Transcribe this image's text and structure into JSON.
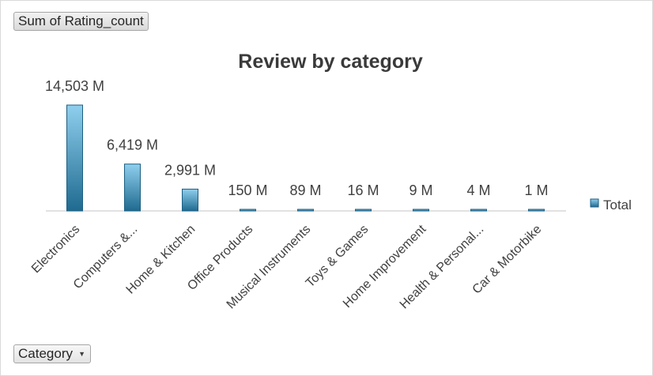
{
  "value_field_button": "Sum of Rating_count",
  "axis_field_button": "Category",
  "colors": {
    "bar_top": "#8fcfee",
    "bar_bottom": "#1f6a90",
    "bar_stroke": "#1c5f82",
    "axis": "#d9d9d9",
    "text": "#404040",
    "title": "#3a3a3a"
  },
  "chart_data": {
    "type": "bar",
    "title": "Review by category",
    "xlabel": "",
    "ylabel": "",
    "grid": false,
    "legend_position": "right",
    "categories": [
      "Electronics",
      "Computers &...",
      "Home & Kitchen",
      "Office Products",
      "Musical Instruments",
      "Toys & Games",
      "Home Improvement",
      "Health & Personal...",
      "Car & Motorbike"
    ],
    "series": [
      {
        "name": "Total",
        "values": [
          14503,
          6419,
          2991,
          150,
          89,
          16,
          9,
          4,
          1
        ],
        "labels": [
          "14,503 M",
          "6,419 M",
          "2,991 M",
          "150 M",
          "89 M",
          "16 M",
          "9 M",
          "4 M",
          "1 M"
        ]
      }
    ]
  }
}
